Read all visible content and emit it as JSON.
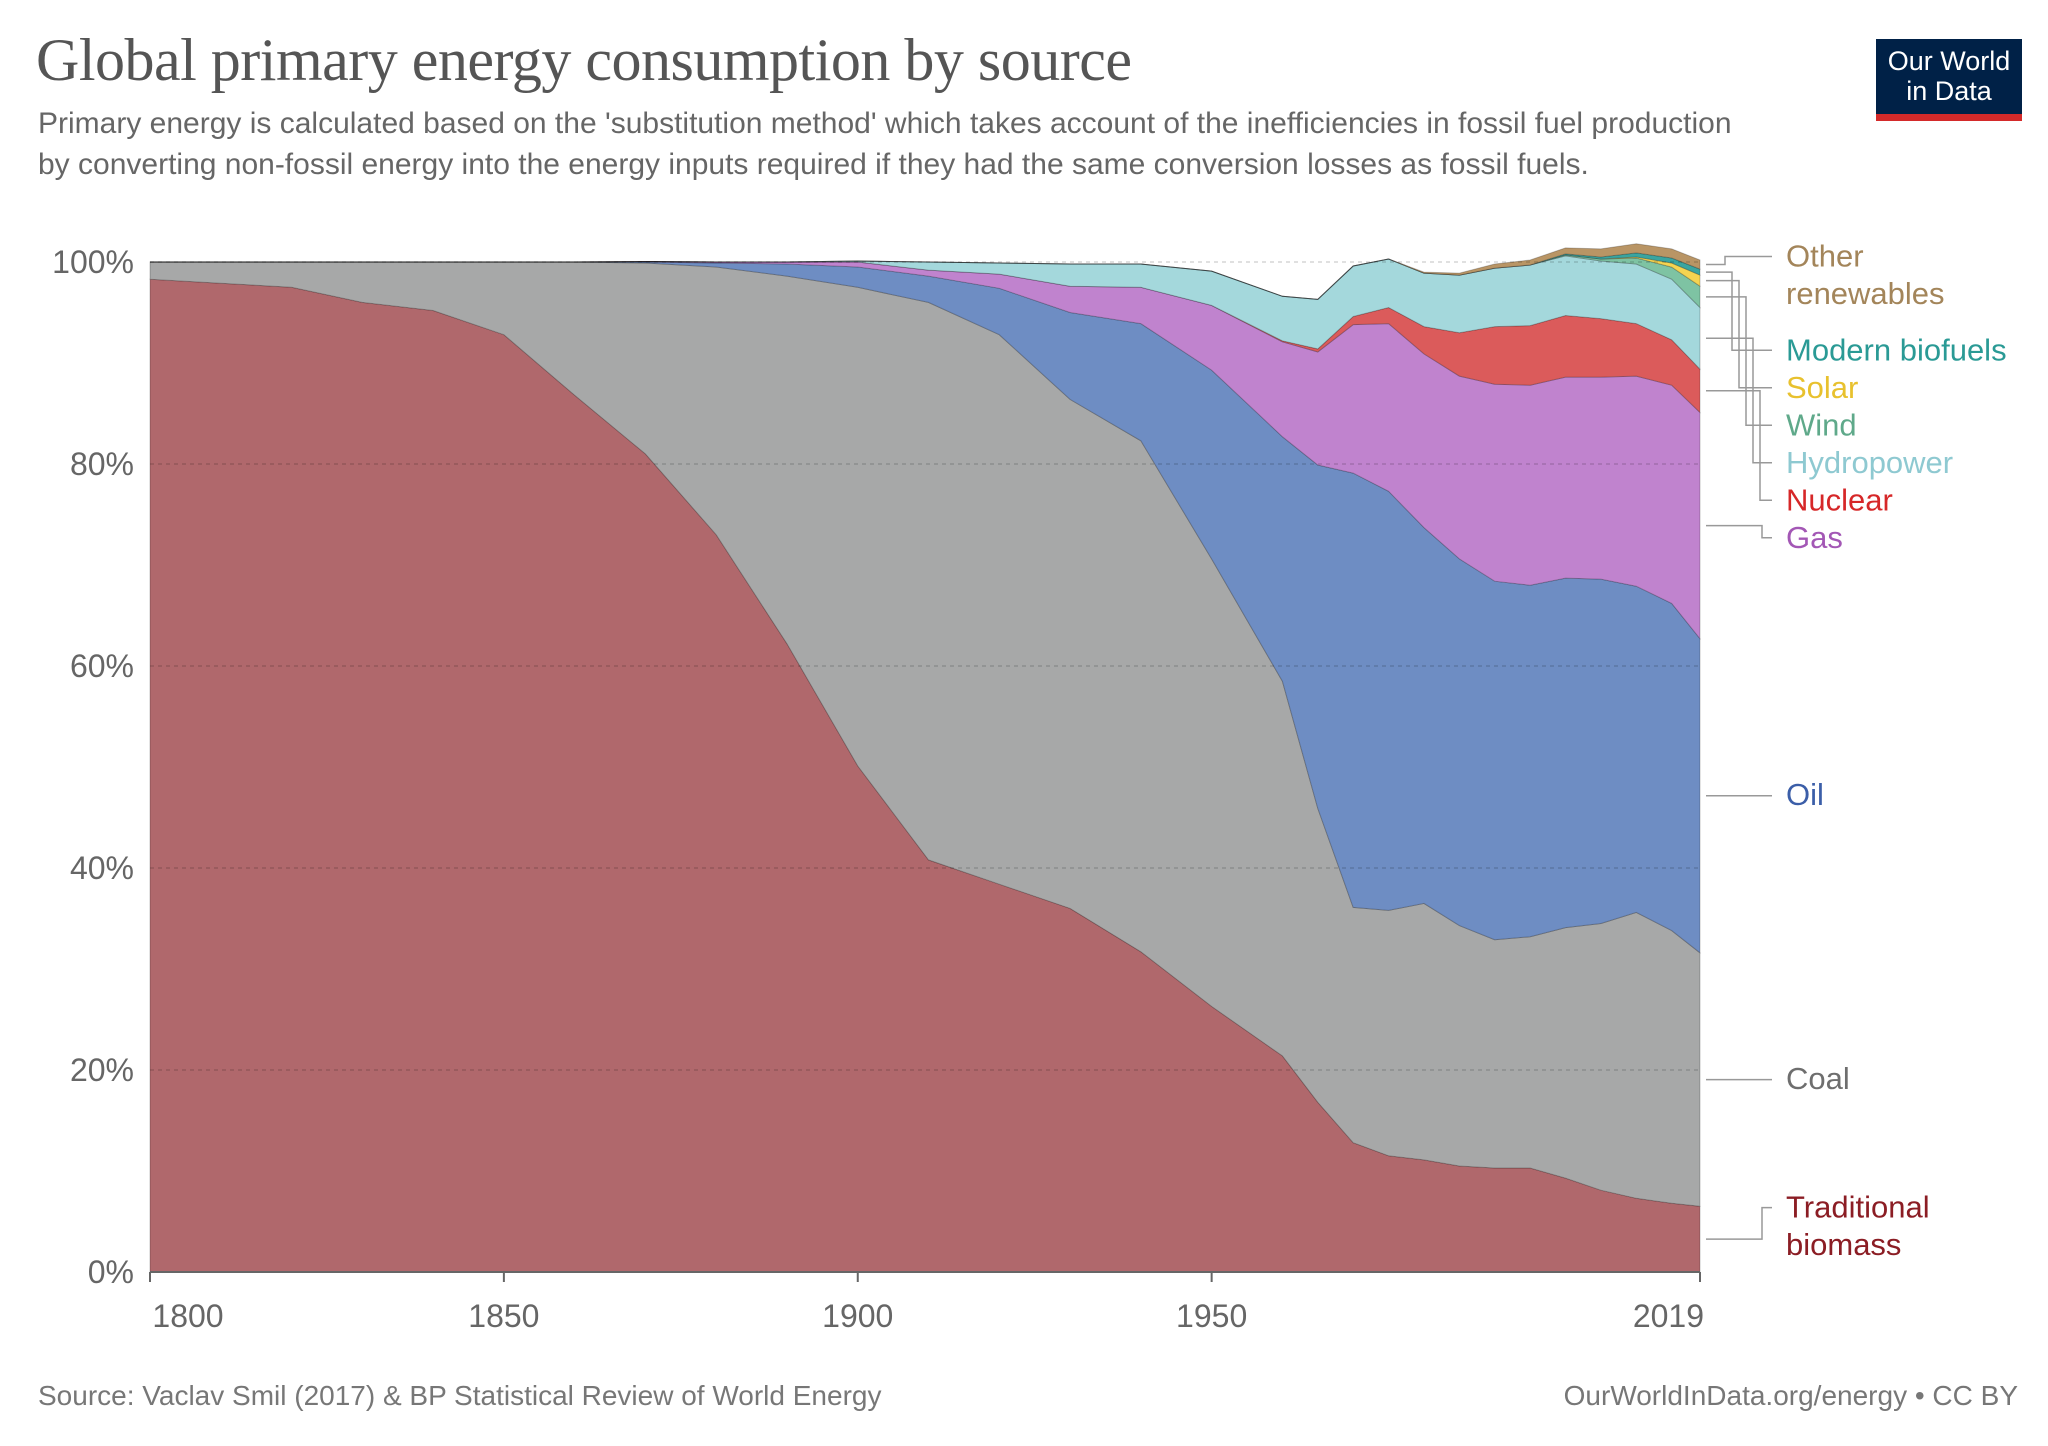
{
  "header": {
    "title": "Global primary energy consumption by source",
    "subtitle": "Primary energy is calculated based on the 'substitution method' which takes account of the inefficiencies in fossil fuel production by converting non-fossil energy into the energy inputs required if they had the same conversion losses as fossil fuels."
  },
  "logo": {
    "line1": "Our World",
    "line2": "in Data",
    "bg": "#002147",
    "accent": "#d42a2a"
  },
  "footer": {
    "source": "Source: Vaclav Smil (2017) & BP Statistical Review of World Energy",
    "credit": "OurWorldInData.org/energy • CC BY"
  },
  "chart_data": {
    "type": "area",
    "stacked": true,
    "title": "Global primary energy consumption by source",
    "xlabel": "",
    "ylabel": "",
    "xlim": [
      1800,
      2019
    ],
    "ylim": [
      0,
      100
    ],
    "x_ticks": [
      1800,
      1850,
      1900,
      1950,
      2019
    ],
    "y_ticks": [
      0,
      20,
      40,
      60,
      80,
      100
    ],
    "y_tick_suffix": "%",
    "grid": "horizontal dashed",
    "legend": "right, labels aligned to series",
    "x": [
      1800,
      1810,
      1820,
      1830,
      1840,
      1850,
      1860,
      1870,
      1880,
      1890,
      1900,
      1910,
      1920,
      1930,
      1940,
      1950,
      1960,
      1965,
      1970,
      1975,
      1980,
      1985,
      1990,
      1995,
      2000,
      2005,
      2010,
      2015,
      2019
    ],
    "series": [
      {
        "name": "Traditional biomass",
        "label": "Traditional biomass",
        "label_lines": [
          "Traditional",
          "biomass"
        ],
        "color": "#b0686c",
        "text_color": "#8b1d24",
        "values": [
          98.3,
          97.9,
          97.5,
          96.0,
          95.2,
          92.8,
          86.8,
          81.0,
          73.0,
          62.2,
          50.1,
          40.8,
          38.4,
          36.0,
          31.7,
          26.3,
          21.4,
          16.8,
          12.8,
          11.5,
          11.1,
          10.5,
          10.3,
          10.3,
          9.3,
          8.1,
          7.3,
          6.8,
          6.5
        ]
      },
      {
        "name": "Coal",
        "label": "Coal",
        "label_lines": [
          "Coal"
        ],
        "color": "#a7a8a8",
        "text_color": "#6e6e6e",
        "values": [
          1.7,
          2.1,
          2.5,
          4.0,
          4.8,
          7.2,
          13.2,
          18.9,
          26.5,
          36.4,
          47.4,
          55.2,
          54.4,
          50.4,
          50.6,
          44.3,
          37.1,
          29.1,
          23.3,
          24.3,
          25.4,
          23.8,
          22.6,
          22.9,
          24.8,
          26.4,
          28.3,
          27.0,
          25.1
        ]
      },
      {
        "name": "Oil",
        "label": "Oil",
        "label_lines": [
          "Oil"
        ],
        "color": "#6e8dc3",
        "text_color": "#3b5ea8",
        "values": [
          0,
          0,
          0,
          0,
          0,
          0,
          0,
          0.1,
          0.4,
          1.2,
          2.0,
          2.6,
          4.6,
          8.6,
          11.6,
          18.7,
          24.2,
          34.0,
          43.0,
          41.5,
          37.2,
          36.3,
          35.5,
          34.8,
          34.6,
          34.1,
          32.3,
          32.4,
          31.1
        ]
      },
      {
        "name": "Gas",
        "label": "Gas",
        "label_lines": [
          "Gas"
        ],
        "color": "#c083ce",
        "text_color": "#a357b5",
        "values": [
          0,
          0,
          0,
          0,
          0,
          0,
          0,
          0.05,
          0.1,
          0.2,
          0.5,
          0.6,
          1.4,
          2.6,
          3.6,
          6.4,
          9.4,
          11.2,
          14.7,
          16.6,
          17.2,
          18.1,
          19.5,
          19.8,
          19.9,
          20.0,
          20.8,
          21.6,
          22.4
        ]
      },
      {
        "name": "Nuclear",
        "label": "Nuclear",
        "label_lines": [
          "Nuclear"
        ],
        "color": "#db5b5b",
        "text_color": "#d62728",
        "values": [
          0,
          0,
          0,
          0,
          0,
          0,
          0,
          0,
          0,
          0,
          0,
          0,
          0,
          0,
          0,
          0,
          0.1,
          0.3,
          0.8,
          1.6,
          2.7,
          4.3,
          5.7,
          5.9,
          6.1,
          5.8,
          5.2,
          4.5,
          4.3
        ]
      },
      {
        "name": "Hydropower",
        "label": "Hydropower",
        "label_lines": [
          "Hydropower"
        ],
        "color": "#a4d8dc",
        "text_color": "#8ec9d1",
        "values": [
          0,
          0,
          0,
          0,
          0,
          0,
          0,
          0,
          0,
          0,
          0.1,
          0.8,
          1.1,
          2.2,
          2.3,
          3.4,
          4.4,
          4.9,
          5.0,
          4.8,
          5.3,
          5.7,
          5.8,
          6.0,
          5.9,
          5.7,
          5.9,
          6.0,
          6.1
        ]
      },
      {
        "name": "Wind",
        "label": "Wind",
        "label_lines": [
          "Wind"
        ],
        "color": "#7ec3a3",
        "text_color": "#5fa98a",
        "values": [
          0,
          0,
          0,
          0,
          0,
          0,
          0,
          0,
          0,
          0,
          0,
          0,
          0,
          0,
          0,
          0,
          0,
          0,
          0,
          0,
          0,
          0,
          0,
          0,
          0.1,
          0.2,
          0.6,
          1.2,
          2.1
        ]
      },
      {
        "name": "Solar",
        "label": "Solar",
        "label_lines": [
          "Solar"
        ],
        "color": "#f5d451",
        "text_color": "#e8c12e",
        "values": [
          0,
          0,
          0,
          0,
          0,
          0,
          0,
          0,
          0,
          0,
          0,
          0,
          0,
          0,
          0,
          0,
          0,
          0,
          0,
          0,
          0,
          0,
          0,
          0,
          0,
          0,
          0.1,
          0.4,
          1.1
        ]
      },
      {
        "name": "Modern biofuels",
        "label": "Modern biofuels",
        "label_lines": [
          "Modern biofuels"
        ],
        "color": "#3aa5a0",
        "text_color": "#2a9a95",
        "values": [
          0,
          0,
          0,
          0,
          0,
          0,
          0,
          0,
          0,
          0,
          0,
          0,
          0,
          0,
          0,
          0,
          0,
          0,
          0,
          0,
          0,
          0,
          0,
          0,
          0.1,
          0.2,
          0.4,
          0.5,
          0.6
        ]
      },
      {
        "name": "Other renewables",
        "label": "Other renewables",
        "label_lines": [
          "Other",
          "renewables"
        ],
        "color": "#b99565",
        "text_color": "#a3855a",
        "values": [
          0,
          0,
          0,
          0,
          0,
          0,
          0,
          0,
          0,
          0,
          0,
          0,
          0,
          0,
          0,
          0,
          0,
          0,
          0,
          0,
          0.1,
          0.2,
          0.4,
          0.5,
          0.6,
          0.8,
          0.9,
          0.9,
          0.9
        ]
      }
    ]
  }
}
